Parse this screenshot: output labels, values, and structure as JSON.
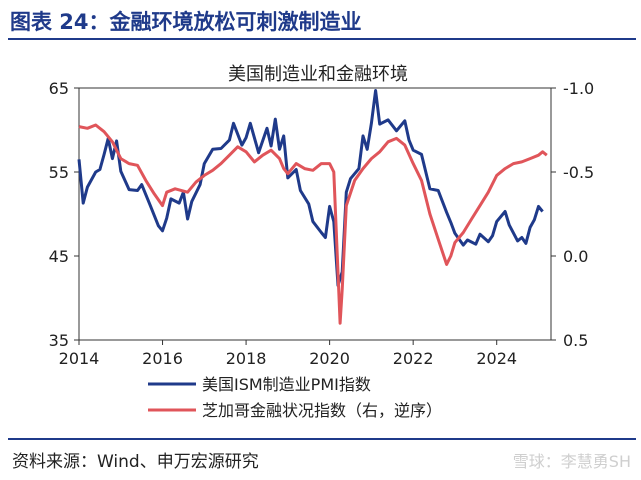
{
  "header": {
    "title": "图表 24：金融环境放松可刺激制造业"
  },
  "footer": {
    "source": "资料来源：Wind、申万宏源研究",
    "watermark": "雪球：李慧勇SH"
  },
  "chart_data": {
    "type": "line",
    "title": "美国制造业和金融环境",
    "x_ticks": [
      "2014",
      "2016",
      "2018",
      "2020",
      "2022",
      "2024"
    ],
    "x_range": [
      2014,
      2025.3
    ],
    "y_left": {
      "ticks": [
        "65",
        "55",
        "45",
        "35"
      ],
      "range": [
        35,
        65
      ]
    },
    "y_right": {
      "ticks": [
        "-1.0",
        "-0.5",
        "0.0",
        "0.5"
      ],
      "range": [
        -1.0,
        0.5
      ],
      "inverted": true
    },
    "colors": {
      "ism": "#1f3a8a",
      "nfci": "#e0555a"
    },
    "legend": [
      "美国ISM制造业PMI指数",
      "芝加哥金融状况指数（右，逆序）"
    ],
    "series": [
      {
        "name": "美国ISM制造业PMI指数",
        "axis": "left",
        "points": [
          [
            2014.0,
            56.5
          ],
          [
            2014.1,
            51.3
          ],
          [
            2014.2,
            53.2
          ],
          [
            2014.4,
            55.0
          ],
          [
            2014.5,
            55.3
          ],
          [
            2014.6,
            57.1
          ],
          [
            2014.7,
            59.0
          ],
          [
            2014.8,
            56.6
          ],
          [
            2014.9,
            58.7
          ],
          [
            2015.0,
            55.1
          ],
          [
            2015.2,
            52.9
          ],
          [
            2015.4,
            52.8
          ],
          [
            2015.5,
            53.5
          ],
          [
            2015.7,
            51.1
          ],
          [
            2015.9,
            48.6
          ],
          [
            2016.0,
            48.0
          ],
          [
            2016.1,
            49.5
          ],
          [
            2016.2,
            51.8
          ],
          [
            2016.4,
            51.3
          ],
          [
            2016.5,
            52.6
          ],
          [
            2016.6,
            49.4
          ],
          [
            2016.7,
            51.5
          ],
          [
            2016.9,
            53.5
          ],
          [
            2017.0,
            56.0
          ],
          [
            2017.2,
            57.7
          ],
          [
            2017.4,
            57.8
          ],
          [
            2017.6,
            58.8
          ],
          [
            2017.7,
            60.8
          ],
          [
            2017.9,
            58.2
          ],
          [
            2018.0,
            59.1
          ],
          [
            2018.1,
            60.8
          ],
          [
            2018.3,
            57.3
          ],
          [
            2018.5,
            60.2
          ],
          [
            2018.6,
            58.1
          ],
          [
            2018.7,
            61.3
          ],
          [
            2018.8,
            57.7
          ],
          [
            2018.9,
            59.3
          ],
          [
            2019.0,
            54.3
          ],
          [
            2019.2,
            55.3
          ],
          [
            2019.3,
            52.8
          ],
          [
            2019.5,
            51.2
          ],
          [
            2019.6,
            49.1
          ],
          [
            2019.8,
            47.8
          ],
          [
            2019.9,
            47.2
          ],
          [
            2020.0,
            50.9
          ],
          [
            2020.1,
            49.1
          ],
          [
            2020.2,
            41.5
          ],
          [
            2020.3,
            43.1
          ],
          [
            2020.4,
            52.6
          ],
          [
            2020.5,
            54.2
          ],
          [
            2020.7,
            55.4
          ],
          [
            2020.8,
            59.3
          ],
          [
            2020.9,
            57.7
          ],
          [
            2021.0,
            60.8
          ],
          [
            2021.1,
            64.7
          ],
          [
            2021.2,
            60.7
          ],
          [
            2021.4,
            61.2
          ],
          [
            2021.6,
            59.9
          ],
          [
            2021.8,
            61.1
          ],
          [
            2021.9,
            58.8
          ],
          [
            2022.0,
            57.6
          ],
          [
            2022.2,
            57.1
          ],
          [
            2022.4,
            53.0
          ],
          [
            2022.6,
            52.8
          ],
          [
            2022.8,
            50.2
          ],
          [
            2022.9,
            49.0
          ],
          [
            2023.0,
            47.7
          ],
          [
            2023.2,
            46.3
          ],
          [
            2023.3,
            46.9
          ],
          [
            2023.5,
            46.4
          ],
          [
            2023.6,
            47.6
          ],
          [
            2023.8,
            46.7
          ],
          [
            2023.9,
            47.4
          ],
          [
            2024.0,
            49.1
          ],
          [
            2024.2,
            50.3
          ],
          [
            2024.3,
            48.7
          ],
          [
            2024.5,
            46.8
          ],
          [
            2024.6,
            47.2
          ],
          [
            2024.7,
            46.5
          ],
          [
            2024.8,
            48.4
          ],
          [
            2024.9,
            49.3
          ],
          [
            2025.0,
            50.9
          ],
          [
            2025.1,
            50.3
          ]
        ]
      },
      {
        "name": "芝加哥金融状况指数（右，逆序）",
        "axis": "right",
        "points": [
          [
            2014.0,
            -0.77
          ],
          [
            2014.2,
            -0.76
          ],
          [
            2014.4,
            -0.78
          ],
          [
            2014.6,
            -0.74
          ],
          [
            2014.8,
            -0.68
          ],
          [
            2015.0,
            -0.58
          ],
          [
            2015.2,
            -0.55
          ],
          [
            2015.4,
            -0.54
          ],
          [
            2015.6,
            -0.45
          ],
          [
            2015.8,
            -0.37
          ],
          [
            2016.0,
            -0.3
          ],
          [
            2016.1,
            -0.38
          ],
          [
            2016.3,
            -0.4
          ],
          [
            2016.6,
            -0.38
          ],
          [
            2016.8,
            -0.44
          ],
          [
            2017.0,
            -0.48
          ],
          [
            2017.2,
            -0.51
          ],
          [
            2017.4,
            -0.55
          ],
          [
            2017.6,
            -0.6
          ],
          [
            2017.8,
            -0.65
          ],
          [
            2018.0,
            -0.62
          ],
          [
            2018.2,
            -0.56
          ],
          [
            2018.4,
            -0.6
          ],
          [
            2018.6,
            -0.63
          ],
          [
            2018.8,
            -0.58
          ],
          [
            2018.9,
            -0.52
          ],
          [
            2019.0,
            -0.49
          ],
          [
            2019.2,
            -0.55
          ],
          [
            2019.4,
            -0.52
          ],
          [
            2019.6,
            -0.51
          ],
          [
            2019.8,
            -0.55
          ],
          [
            2020.0,
            -0.55
          ],
          [
            2020.1,
            -0.5
          ],
          [
            2020.2,
            0.1
          ],
          [
            2020.25,
            0.4
          ],
          [
            2020.3,
            0.2
          ],
          [
            2020.4,
            -0.3
          ],
          [
            2020.6,
            -0.45
          ],
          [
            2020.8,
            -0.52
          ],
          [
            2021.0,
            -0.58
          ],
          [
            2021.2,
            -0.62
          ],
          [
            2021.4,
            -0.68
          ],
          [
            2021.6,
            -0.7
          ],
          [
            2021.8,
            -0.66
          ],
          [
            2022.0,
            -0.55
          ],
          [
            2022.2,
            -0.45
          ],
          [
            2022.4,
            -0.25
          ],
          [
            2022.6,
            -0.1
          ],
          [
            2022.8,
            0.05
          ],
          [
            2022.9,
            0.0
          ],
          [
            2023.0,
            -0.08
          ],
          [
            2023.2,
            -0.14
          ],
          [
            2023.4,
            -0.22
          ],
          [
            2023.6,
            -0.3
          ],
          [
            2023.8,
            -0.38
          ],
          [
            2024.0,
            -0.48
          ],
          [
            2024.2,
            -0.52
          ],
          [
            2024.4,
            -0.55
          ],
          [
            2024.6,
            -0.56
          ],
          [
            2024.8,
            -0.58
          ],
          [
            2025.0,
            -0.6
          ],
          [
            2025.1,
            -0.62
          ],
          [
            2025.2,
            -0.6
          ]
        ]
      }
    ]
  }
}
